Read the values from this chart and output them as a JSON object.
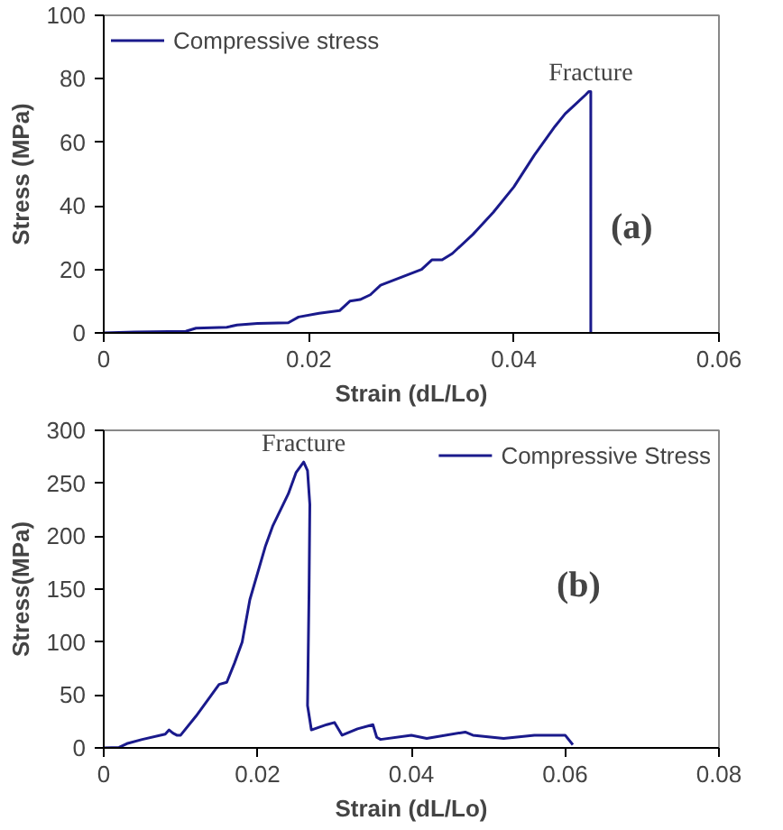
{
  "chart_data": [
    {
      "type": "line",
      "xlabel": "Strain (dL/Lo)",
      "ylabel": "Stress (MPa)",
      "xlim": [
        0,
        0.06
      ],
      "ylim": [
        0,
        100
      ],
      "xticks": [
        0,
        0.02,
        0.04,
        0.06
      ],
      "yticks": [
        0,
        20,
        40,
        60,
        80,
        100
      ],
      "grid": false,
      "legend": "top left",
      "series": [
        {
          "name": "Compressive stress",
          "color": "#1a1a8c",
          "x": [
            0,
            0.003,
            0.008,
            0.009,
            0.012,
            0.013,
            0.015,
            0.018,
            0.019,
            0.021,
            0.023,
            0.024,
            0.025,
            0.026,
            0.027,
            0.029,
            0.031,
            0.032,
            0.033,
            0.034,
            0.036,
            0.038,
            0.04,
            0.042,
            0.044,
            0.045,
            0.046,
            0.047,
            0.0473,
            0.0475,
            0.0475
          ],
          "values": [
            0,
            0.3,
            0.5,
            1.5,
            1.8,
            2.5,
            3,
            3.2,
            5,
            6.2,
            7,
            10,
            10.5,
            12,
            15,
            17.5,
            20,
            23,
            23,
            25,
            31,
            38,
            46,
            56,
            65,
            69,
            72,
            75,
            76,
            76,
            0
          ]
        }
      ],
      "annotations": [
        {
          "text": "Fracture",
          "x": 0.0475,
          "y": 76
        },
        "(a)"
      ]
    },
    {
      "type": "line",
      "xlabel": "Strain (dL/Lo)",
      "ylabel": "Stress(MPa)",
      "xlim": [
        0,
        0.08
      ],
      "ylim": [
        0,
        300
      ],
      "xticks": [
        0,
        0.02,
        0.04,
        0.06,
        0.08
      ],
      "yticks": [
        0,
        50,
        100,
        150,
        200,
        250,
        300
      ],
      "grid": false,
      "legend": "top right",
      "series": [
        {
          "name": "Compressive Stress",
          "color": "#1a1a8c",
          "x": [
            0,
            0.002,
            0.003,
            0.005,
            0.008,
            0.0085,
            0.009,
            0.0095,
            0.01,
            0.012,
            0.014,
            0.015,
            0.016,
            0.017,
            0.018,
            0.019,
            0.021,
            0.022,
            0.024,
            0.025,
            0.026,
            0.0265,
            0.0268,
            0.0267,
            0.0265,
            0.027,
            0.029,
            0.03,
            0.031,
            0.033,
            0.035,
            0.0355,
            0.036,
            0.04,
            0.042,
            0.047,
            0.048,
            0.052,
            0.056,
            0.06,
            0.061
          ],
          "values": [
            0,
            0.5,
            4,
            8,
            13,
            17,
            14,
            12,
            12,
            30,
            50,
            60,
            62,
            80,
            100,
            140,
            190,
            210,
            240,
            260,
            270,
            262,
            230,
            150,
            40,
            17,
            22,
            24,
            12,
            18,
            22,
            10,
            8,
            12,
            9,
            15,
            12,
            9,
            12,
            12,
            3
          ]
        }
      ],
      "annotations": [
        {
          "text": "Fracture",
          "x": 0.026,
          "y": 270
        },
        "(b)"
      ]
    }
  ]
}
